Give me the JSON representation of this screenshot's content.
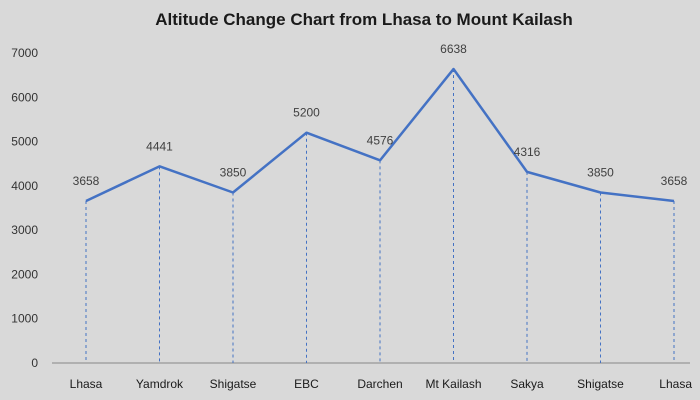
{
  "chart_data": {
    "type": "line",
    "title": "Altitude Change Chart from Lhasa to Mount Kailash",
    "categories": [
      "Lhasa",
      "Yamdrok",
      "Shigatse",
      "EBC",
      "Darchen",
      "Mt Kailash",
      "Sakya",
      "Shigatse",
      "Lhasa"
    ],
    "series": [
      {
        "name": "Altitude",
        "values": [
          3658,
          4441,
          3850,
          5200,
          4576,
          6638,
          4316,
          3850,
          3658
        ]
      }
    ],
    "data_labels": [
      "3658",
      "4441",
      "3850",
      "5200",
      "4576",
      "6638",
      "4316",
      "3850",
      "3658"
    ],
    "yticks": [
      "0",
      "1000",
      "2000",
      "3000",
      "4000",
      "5000",
      "6000",
      "7000"
    ],
    "ylim": [
      0,
      7000
    ],
    "xlabel": "",
    "ylabel": "",
    "grid": false,
    "drop_lines": true,
    "legend": "none"
  },
  "colors": {
    "background": "#d9d9d9",
    "line": "#4472c4",
    "drop_line": "#4472c4",
    "axis": "#888888"
  }
}
